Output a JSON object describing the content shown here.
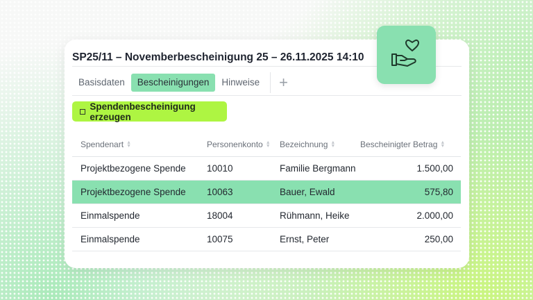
{
  "header": {
    "title": "SP25/11 – Novemberbescheinigung 25 – 26.11.2025 14:10"
  },
  "tabs": [
    {
      "label": "Basisdaten"
    },
    {
      "label": "Bescheinigungen",
      "active": true
    },
    {
      "label": "Hinweise"
    }
  ],
  "add_tab_icon": "plus-icon",
  "action_button": {
    "label": "Spendenbescheinigung erzeugen",
    "icon": "certificate-icon"
  },
  "table": {
    "columns": [
      "Spendenart",
      "Personenkonto",
      "Bezeichnung",
      "Bescheinigter Betrag"
    ],
    "rows": [
      [
        "Projektbezogene Spende",
        "10010",
        "Familie Bergmann",
        "1.500,00"
      ],
      [
        "Projektbezogene Spende",
        "10063",
        "Bauer, Ewald",
        "575,80"
      ],
      [
        "Einmalspende",
        "18004",
        "Rühmann, Heike",
        "2.000,00"
      ],
      [
        "Einmalspende",
        "10075",
        "Ernst, Peter",
        "250,00"
      ]
    ],
    "selected_row": 1
  },
  "badge_icon": "hand-heart-icon",
  "colors": {
    "accent": "#89e0b0",
    "button": "#aef542"
  }
}
